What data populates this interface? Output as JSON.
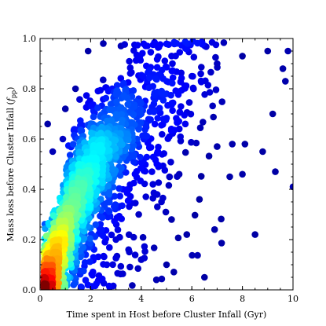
{
  "chart_data": {
    "type": "scatter",
    "title": "",
    "xlabel": "Time spent in Host before Cluster Infall (Gyr)",
    "ylabel_main": "Mass loss before Cluster Infall (",
    "ylabel_var": "f",
    "ylabel_sub": "pp",
    "ylabel_close": ")",
    "xlim": [
      0,
      10
    ],
    "ylim": [
      0.0,
      1.0
    ],
    "x_ticks": [
      0,
      2,
      4,
      6,
      8,
      10
    ],
    "x_tick_labels": [
      "0",
      "2",
      "4",
      "6",
      "8",
      "10"
    ],
    "y_ticks": [
      0.0,
      0.2,
      0.4,
      0.6,
      0.8,
      1.0
    ],
    "y_tick_labels": [
      "0.0",
      "0.2",
      "0.4",
      "0.6",
      "0.8",
      "1.0"
    ],
    "grid": false,
    "colormap": "jet (color encodes point density: dark red = densest, dark blue = sparsest)",
    "colors": [
      "#00008f",
      "#0000ff",
      "#0080ff",
      "#00ffff",
      "#80ff80",
      "#ffff00",
      "#ff8000",
      "#ff0000",
      "#800000"
    ],
    "density_ridge": [
      {
        "x": 0.3,
        "y": 0.05
      },
      {
        "x": 0.8,
        "y": 0.2
      },
      {
        "x": 1.3,
        "y": 0.35
      },
      {
        "x": 2.0,
        "y": 0.47
      },
      {
        "x": 2.8,
        "y": 0.57
      },
      {
        "x": 3.6,
        "y": 0.66
      },
      {
        "x": 4.5,
        "y": 0.74
      },
      {
        "x": 5.5,
        "y": 0.82
      },
      {
        "x": 7.0,
        "y": 0.9
      },
      {
        "x": 9.0,
        "y": 0.95
      }
    ],
    "points": [
      [
        0.5,
        0.06
      ],
      [
        0.55,
        0.03
      ],
      [
        0.8,
        0.12
      ],
      [
        1.0,
        0.25
      ],
      [
        1.2,
        0.3
      ],
      [
        1.5,
        0.36
      ],
      [
        1.8,
        0.42
      ],
      [
        2.2,
        0.5
      ],
      [
        2.6,
        0.55
      ],
      [
        3.0,
        0.6
      ],
      [
        3.5,
        0.65
      ],
      [
        4.0,
        0.7
      ],
      [
        4.5,
        0.74
      ],
      [
        5.0,
        0.78
      ],
      [
        6.0,
        0.85
      ],
      [
        7.0,
        0.9
      ],
      [
        8.0,
        0.93
      ],
      [
        9.0,
        0.95
      ],
      [
        9.6,
        0.88
      ],
      [
        9.8,
        0.95
      ],
      [
        1.0,
        0.72
      ],
      [
        1.4,
        0.8
      ],
      [
        0.9,
        0.6
      ],
      [
        0.3,
        0.66
      ],
      [
        0.5,
        0.55
      ],
      [
        1.9,
        0.95
      ],
      [
        2.5,
        0.98
      ],
      [
        3.2,
        0.97
      ],
      [
        3.0,
        0.2
      ],
      [
        3.5,
        0.16
      ],
      [
        4.0,
        0.12
      ],
      [
        4.6,
        0.04
      ],
      [
        5.0,
        0.1
      ],
      [
        5.8,
        0.22
      ],
      [
        6.5,
        0.05
      ],
      [
        6.9,
        0.24
      ],
      [
        7.5,
        0.45
      ],
      [
        8.0,
        0.46
      ],
      [
        8.5,
        0.22
      ],
      [
        9.3,
        0.47
      ],
      [
        10.0,
        0.41
      ],
      [
        8.8,
        0.55
      ],
      [
        9.2,
        0.7
      ],
      [
        5.5,
        0.46
      ],
      [
        6.3,
        0.36
      ],
      [
        4.8,
        0.35
      ],
      [
        5.2,
        0.28
      ],
      [
        3.9,
        0.3
      ],
      [
        7.0,
        0.57
      ],
      [
        7.6,
        0.58
      ],
      [
        8.1,
        0.58
      ],
      [
        9.7,
        0.83
      ]
    ]
  }
}
